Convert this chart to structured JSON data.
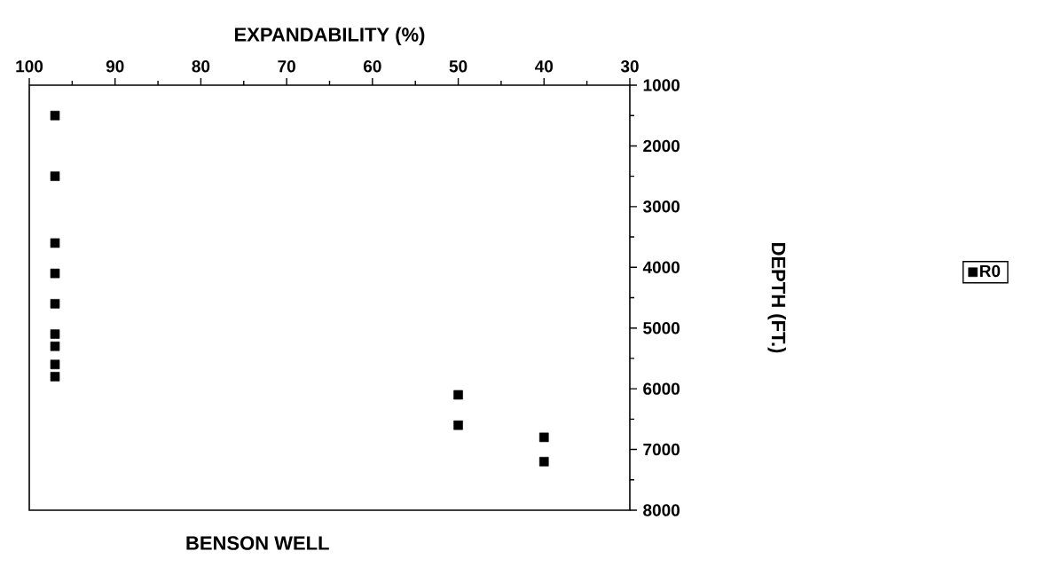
{
  "chart_data": {
    "type": "scatter",
    "title": "BENSON WELL",
    "xlabel": "EXPANDABILITY (%)",
    "ylabel": "DEPTH (FT.)",
    "series": [
      {
        "name": "R0",
        "color": "#000000",
        "x": [
          97,
          97,
          97,
          97,
          97,
          97,
          97,
          97,
          97,
          50,
          50,
          40,
          40
        ],
        "values": [
          1500,
          2500,
          3600,
          4100,
          4600,
          5100,
          5300,
          5600,
          5800,
          6100,
          6600,
          6800,
          7200
        ]
      }
    ],
    "xlim": [
      100,
      30
    ],
    "ylim": [
      8000,
      1000
    ],
    "xticks": [
      100,
      90,
      80,
      70,
      60,
      50,
      40,
      30
    ],
    "yticks": [
      1000,
      2000,
      3000,
      4000,
      5000,
      6000,
      7000,
      8000
    ],
    "marker": "square",
    "legend": "right",
    "grid": false
  }
}
